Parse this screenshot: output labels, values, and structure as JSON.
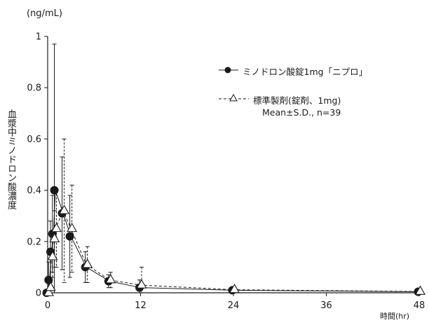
{
  "chart_data": {
    "type": "line",
    "y_unit": "(ng/mL)",
    "ylabel": "血漿中ミノドロン酸濃度",
    "xlabel": "時間(hr)",
    "xlim": [
      0,
      48
    ],
    "ylim": [
      0,
      1
    ],
    "x_ticks": [
      0,
      12,
      24,
      36,
      48
    ],
    "y_ticks": [
      0,
      0.2,
      0.4,
      0.6,
      0.8,
      1
    ],
    "y_tick_labels": [
      "0",
      "0.2",
      "0.4",
      "0.6",
      "0.8",
      "1"
    ],
    "legend_position": "top-right",
    "legend_note": "Mean±S.D., n=39",
    "series": [
      {
        "name": "ミノドロン酸錠1mg「ニプロ」",
        "marker": "filled-circle",
        "line": "solid",
        "color": "#1a1a1a",
        "x": [
          0,
          0.25,
          0.5,
          0.75,
          1,
          2,
          3,
          5,
          8,
          12,
          24,
          48
        ],
        "y": [
          0,
          0.05,
          0.16,
          0.23,
          0.4,
          0.31,
          0.22,
          0.1,
          0.045,
          0.02,
          0.01,
          0.004
        ],
        "sd": [
          0,
          0.07,
          0.12,
          0.15,
          0.57,
          0.22,
          0.16,
          0.06,
          0.025,
          0.03,
          0.008,
          0.003
        ]
      },
      {
        "name": "標準製剤(錠剤、1mg)",
        "marker": "open-triangle",
        "line": "dashed",
        "color": "#1a1a1a",
        "x": [
          0,
          0.25,
          0.5,
          0.75,
          1,
          2,
          3,
          5,
          8,
          12,
          24,
          48
        ],
        "y": [
          0,
          0.02,
          0.14,
          0.21,
          0.25,
          0.32,
          0.25,
          0.11,
          0.05,
          0.03,
          0.012,
          0.005
        ],
        "sd": [
          0,
          0.03,
          0.08,
          0.11,
          0.15,
          0.28,
          0.17,
          0.07,
          0.03,
          0.07,
          0.01,
          0.004
        ]
      }
    ]
  }
}
